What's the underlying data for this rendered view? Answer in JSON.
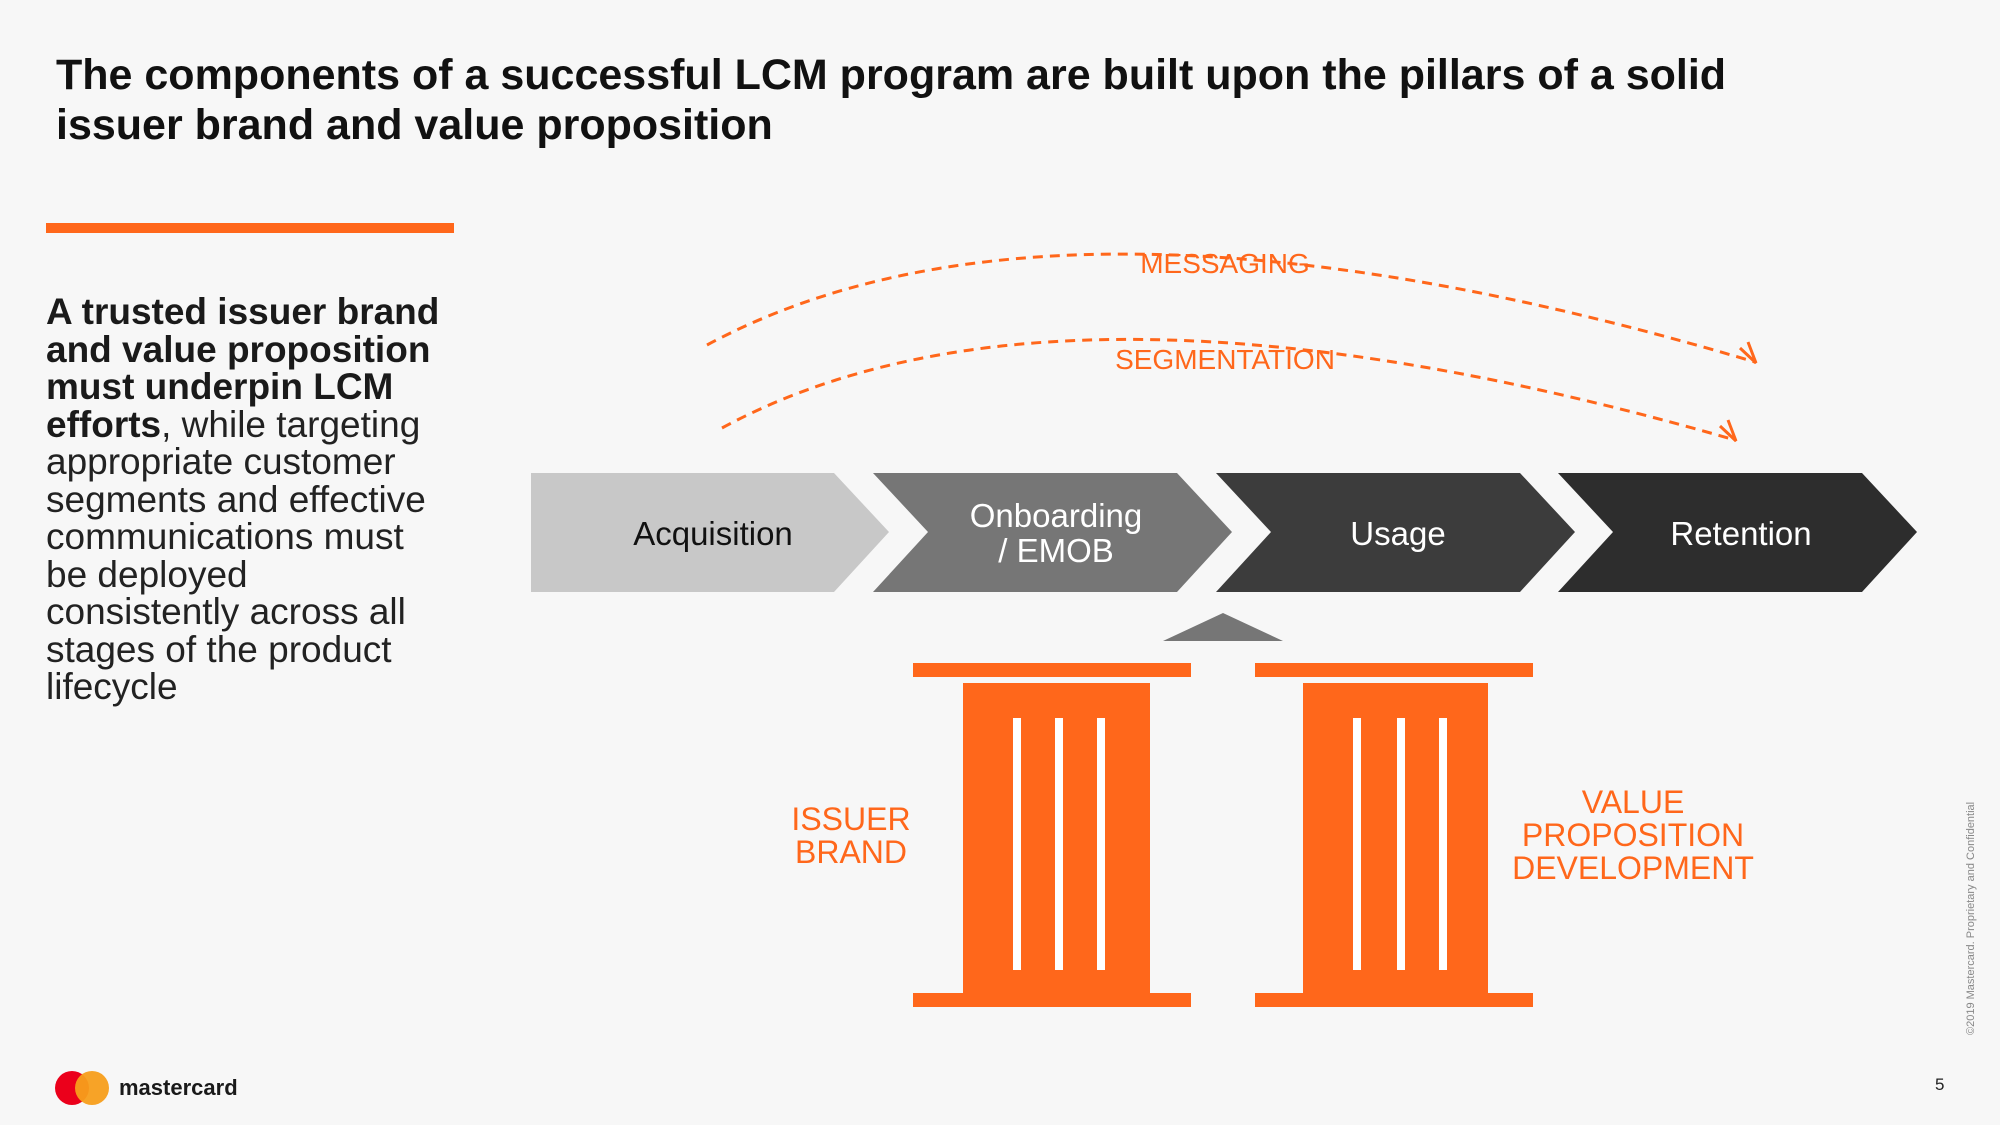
{
  "title": "The components of a successful LCM program are built upon the pillars of a solid issuer brand and value proposition",
  "lead": {
    "strong": "A trusted issuer brand and value proposition must underpin LCM efforts",
    "rest": ", while targeting appropriate customer segments and effective communications must be deployed consistently across all stages of the product lifecycle"
  },
  "diagram": {
    "arcs": {
      "outer_label": "MESSAGING",
      "inner_label": "SEGMENTATION"
    },
    "stages": [
      {
        "line1": "Acquisition",
        "line2": ""
      },
      {
        "line1": "Onboarding",
        "line2": "/ EMOB"
      },
      {
        "line1": "Usage",
        "line2": ""
      },
      {
        "line1": "Retention",
        "line2": ""
      }
    ],
    "pillars": [
      {
        "line1": "ISSUER",
        "line2": "BRAND",
        "line3": ""
      },
      {
        "line1": "VALUE",
        "line2": "PROPOSITION",
        "line3": "DEVELOPMENT"
      }
    ]
  },
  "colors": {
    "accent": "#ff671b",
    "stage_fills": [
      "#c8c8c8",
      "#767676",
      "#3c3c3c",
      "#2d2d2d"
    ],
    "stage_text": [
      "#111111",
      "#ffffff",
      "#ffffff",
      "#ffffff"
    ],
    "pointer": "#767676"
  },
  "footer": {
    "brand": "mastercard",
    "page_number": "5",
    "copyright": "©2019 Mastercard. Proprietary and Confidential"
  }
}
